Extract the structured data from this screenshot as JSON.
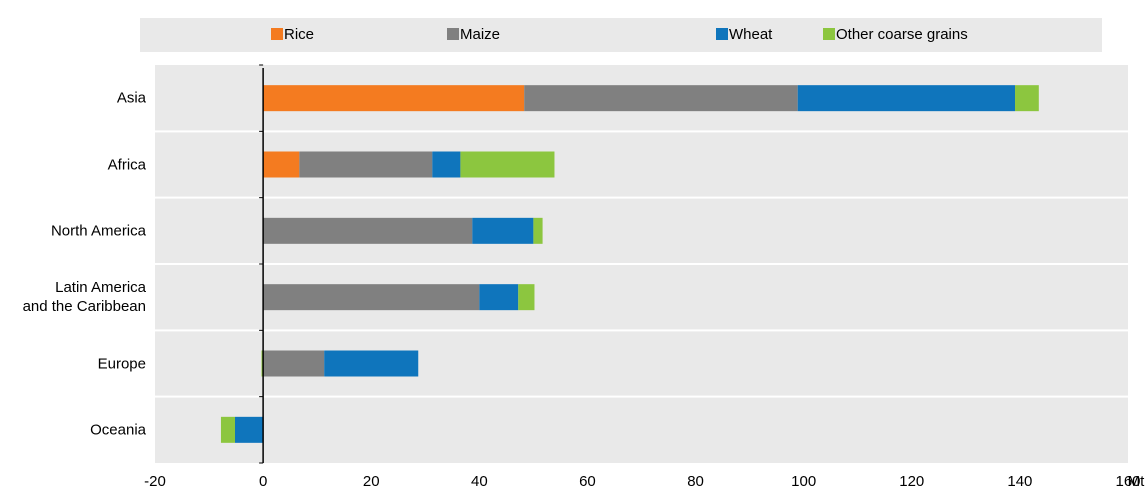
{
  "chart_data": {
    "type": "stacked_barh",
    "categories": [
      "Asia",
      "Africa",
      "North America",
      "Latin America\nand the Caribbean",
      "Europe",
      "Oceania"
    ],
    "series": [
      {
        "name": "Rice",
        "color": "#f47b20",
        "values": [
          48.3,
          6.7,
          0,
          0,
          0,
          0
        ]
      },
      {
        "name": "Maize",
        "color": "#808080",
        "values": [
          50.6,
          24.6,
          38.7,
          40,
          11.3,
          0
        ]
      },
      {
        "name": "Wheat",
        "color": "#0f75bc",
        "values": [
          40.2,
          5.2,
          11.3,
          7.2,
          17.4,
          -5.2
        ]
      },
      {
        "name": "Other coarse grains",
        "color": "#8cc63f",
        "values": [
          4.4,
          17.4,
          1.7,
          3,
          -0.3,
          -2.6
        ]
      }
    ],
    "xlabel": "Mt",
    "xlim": [
      -20,
      160
    ],
    "xticks": [
      -20,
      0,
      20,
      40,
      60,
      80,
      100,
      120,
      140,
      160
    ]
  }
}
